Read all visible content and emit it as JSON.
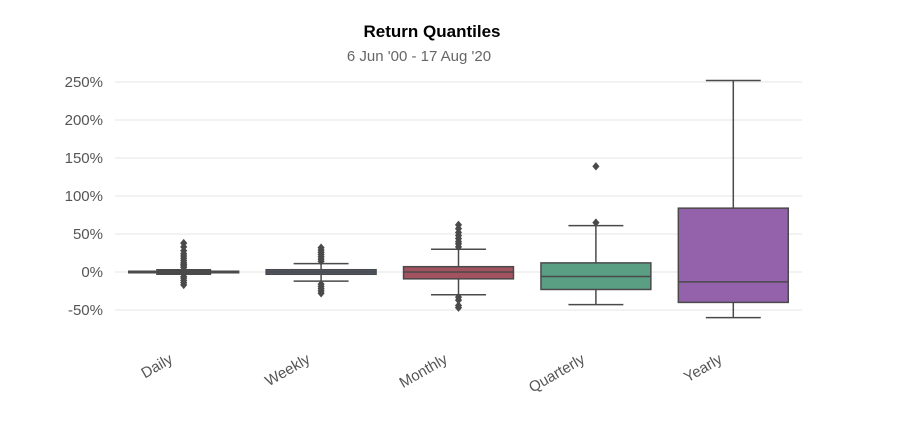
{
  "chart_data": {
    "type": "box",
    "title": "Return Quantiles",
    "subtitle": "6 Jun '00 - 17 Aug '20",
    "xlabel": "",
    "ylabel": "",
    "ylim": [
      -75,
      260
    ],
    "yticks": [
      -50,
      0,
      50,
      100,
      150,
      200,
      250
    ],
    "ytick_labels": [
      "-50%",
      "0%",
      "50%",
      "100%",
      "150%",
      "200%",
      "250%"
    ],
    "grid": true,
    "categories": [
      "Daily",
      "Weekly",
      "Monthly",
      "Quarterly",
      "Yearly"
    ],
    "series": [
      {
        "category": "Daily",
        "color": "#4a6fa5",
        "whisker_low": -3,
        "q1": -1,
        "median": 0,
        "q3": 1,
        "whisker_high": 3,
        "outliers": [
          -17,
          -14,
          -11,
          -8,
          -6,
          6,
          8,
          10,
          12,
          15,
          18,
          21,
          24,
          28,
          33,
          38
        ]
      },
      {
        "category": "Weekly",
        "color": "#4f5d73",
        "whisker_low": -12,
        "q1": -3,
        "median": 0,
        "q3": 3,
        "whisker_high": 11,
        "outliers": [
          -28,
          -25,
          -22,
          -19,
          -16,
          14,
          17,
          20,
          23,
          26,
          29,
          32
        ]
      },
      {
        "category": "Monthly",
        "color": "#a3525f",
        "whisker_low": -30,
        "q1": -9,
        "median": 0,
        "q3": 7,
        "whisker_high": 30,
        "outliers": [
          -47,
          -44,
          -37,
          -33,
          33,
          37,
          40,
          44,
          48,
          52,
          57,
          62
        ]
      },
      {
        "category": "Quarterly",
        "color": "#5a9e83",
        "whisker_low": -43,
        "q1": -23,
        "median": -6,
        "q3": 12,
        "whisker_high": 61,
        "outliers": [
          65,
          139
        ]
      },
      {
        "category": "Yearly",
        "color": "#9462ab",
        "whisker_low": -60,
        "q1": -40,
        "median": -13,
        "q3": 84,
        "whisker_high": 252,
        "outliers": []
      }
    ]
  }
}
